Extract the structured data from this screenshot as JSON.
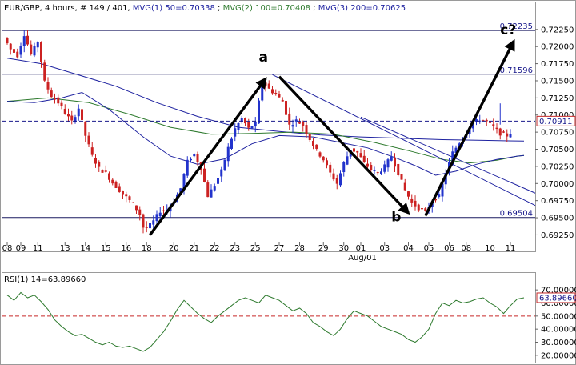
{
  "header": {
    "instrument": "EUR/GBP",
    "info": ", 4 hours, # 149 / 401, ",
    "mvg1_label": "MVG(1) 50=0.70338",
    "mvg2_label": "MVG(2) 100=0.70408",
    "mvg3_label": "MVG(3) 200=0.70625"
  },
  "colors": {
    "bull": "#2233cc",
    "bear": "#cc2222",
    "mvg1": "#1e22a0",
    "mvg2": "#2e7a2e",
    "mvg3": "#1e22a0",
    "rsi": "#2e7a2e",
    "current": "#1a1a8c",
    "rsi_level": "#c62828"
  },
  "chart_data": [
    {
      "type": "candlestick",
      "title": "",
      "y_ticks": [
        "0.72250",
        "0.72000",
        "0.71750",
        "0.71500",
        "0.71250",
        "0.71000",
        "0.70750",
        "0.70500",
        "0.70250",
        "0.70000",
        "0.69750",
        "0.69500",
        "0.69250"
      ],
      "ylim": [
        0.6915,
        0.7247
      ],
      "x_ticks": [
        {
          "label": "08",
          "i": 0
        },
        {
          "label": "09",
          "i": 4
        },
        {
          "label": "11",
          "i": 9
        },
        {
          "label": "13",
          "i": 17
        },
        {
          "label": "14",
          "i": 23
        },
        {
          "label": "15",
          "i": 29
        },
        {
          "label": "16",
          "i": 35
        },
        {
          "label": "18",
          "i": 41
        },
        {
          "label": "20",
          "i": 49
        },
        {
          "label": "21",
          "i": 55
        },
        {
          "label": "22",
          "i": 61
        },
        {
          "label": "23",
          "i": 67
        },
        {
          "label": "25",
          "i": 73
        },
        {
          "label": "27",
          "i": 80
        },
        {
          "label": "28",
          "i": 86
        },
        {
          "label": "29",
          "i": 93
        },
        {
          "label": "30",
          "i": 99
        },
        {
          "label": "01",
          "i": 104
        },
        {
          "label": "03",
          "i": 111
        },
        {
          "label": "04",
          "i": 118
        },
        {
          "label": "05",
          "i": 124
        },
        {
          "label": "06",
          "i": 130
        },
        {
          "label": "08",
          "i": 135
        },
        {
          "label": "10",
          "i": 142
        },
        {
          "label": "11",
          "i": 148
        }
      ],
      "x_sublabel": {
        "label": "Aug/01",
        "i": 104
      },
      "candle_count": 149,
      "anchors": [
        [
          0,
          0.7213
        ],
        [
          2,
          0.7196
        ],
        [
          4,
          0.7187
        ],
        [
          6,
          0.7218
        ],
        [
          8,
          0.7189
        ],
        [
          10,
          0.7208
        ],
        [
          12,
          0.7148
        ],
        [
          14,
          0.7128
        ],
        [
          16,
          0.7118
        ],
        [
          18,
          0.7103
        ],
        [
          20,
          0.709
        ],
        [
          22,
          0.711
        ],
        [
          24,
          0.707
        ],
        [
          26,
          0.704
        ],
        [
          28,
          0.7022
        ],
        [
          30,
          0.7015
        ],
        [
          32,
          0.7001
        ],
        [
          34,
          0.699
        ],
        [
          36,
          0.698
        ],
        [
          38,
          0.697
        ],
        [
          40,
          0.6955
        ],
        [
          41,
          0.6936
        ],
        [
          42,
          0.6935
        ],
        [
          44,
          0.6945
        ],
        [
          46,
          0.696
        ],
        [
          48,
          0.6962
        ],
        [
          50,
          0.6975
        ],
        [
          52,
          0.6993
        ],
        [
          54,
          0.7032
        ],
        [
          56,
          0.7043
        ],
        [
          58,
          0.7022
        ],
        [
          60,
          0.6982
        ],
        [
          62,
          0.6998
        ],
        [
          64,
          0.7018
        ],
        [
          66,
          0.7052
        ],
        [
          68,
          0.708
        ],
        [
          70,
          0.7095
        ],
        [
          72,
          0.708
        ],
        [
          74,
          0.7088
        ],
        [
          76,
          0.715
        ],
        [
          78,
          0.7138
        ],
        [
          80,
          0.713
        ],
        [
          82,
          0.712
        ],
        [
          84,
          0.7085
        ],
        [
          86,
          0.7092
        ],
        [
          88,
          0.7085
        ],
        [
          90,
          0.7065
        ],
        [
          92,
          0.7048
        ],
        [
          94,
          0.7035
        ],
        [
          96,
          0.7015
        ],
        [
          98,
          0.7
        ],
        [
          100,
          0.703
        ],
        [
          102,
          0.705
        ],
        [
          104,
          0.7045
        ],
        [
          106,
          0.703
        ],
        [
          108,
          0.702
        ],
        [
          110,
          0.7015
        ],
        [
          112,
          0.7025
        ],
        [
          114,
          0.704
        ],
        [
          116,
          0.7015
        ],
        [
          118,
          0.699
        ],
        [
          120,
          0.6972
        ],
        [
          122,
          0.6964
        ],
        [
          124,
          0.6958
        ],
        [
          126,
          0.6975
        ],
        [
          128,
          0.6982
        ],
        [
          130,
          0.7015
        ],
        [
          132,
          0.7045
        ],
        [
          134,
          0.706
        ],
        [
          136,
          0.7075
        ],
        [
          138,
          0.7088
        ],
        [
          140,
          0.7094
        ],
        [
          142,
          0.709
        ],
        [
          144,
          0.7082
        ],
        [
          146,
          0.7073
        ],
        [
          148,
          0.707
        ],
        [
          150,
          0.7078
        ],
        [
          152,
          0.709
        ]
      ],
      "mvg50": [
        [
          0,
          0.712
        ],
        [
          8,
          0.7118
        ],
        [
          16,
          0.7125
        ],
        [
          22,
          0.7133
        ],
        [
          30,
          0.7108
        ],
        [
          40,
          0.7068
        ],
        [
          48,
          0.704
        ],
        [
          56,
          0.7028
        ],
        [
          64,
          0.7036
        ],
        [
          72,
          0.7058
        ],
        [
          80,
          0.707
        ],
        [
          90,
          0.7068
        ],
        [
          98,
          0.706
        ],
        [
          106,
          0.7052
        ],
        [
          114,
          0.7038
        ],
        [
          120,
          0.7026
        ],
        [
          126,
          0.7012
        ],
        [
          132,
          0.7018
        ],
        [
          138,
          0.7028
        ],
        [
          144,
          0.7035
        ],
        [
          150,
          0.704
        ],
        [
          152,
          0.7041
        ]
      ],
      "mvg100": [
        [
          0,
          0.712
        ],
        [
          12,
          0.7125
        ],
        [
          24,
          0.7118
        ],
        [
          36,
          0.7101
        ],
        [
          48,
          0.7082
        ],
        [
          60,
          0.7072
        ],
        [
          72,
          0.7073
        ],
        [
          84,
          0.7075
        ],
        [
          96,
          0.7072
        ],
        [
          108,
          0.706
        ],
        [
          118,
          0.7048
        ],
        [
          128,
          0.7035
        ],
        [
          136,
          0.703
        ],
        [
          144,
          0.7034
        ],
        [
          150,
          0.704
        ],
        [
          152,
          0.7041
        ]
      ],
      "mvg200": [
        [
          0,
          0.7183
        ],
        [
          10,
          0.7175
        ],
        [
          20,
          0.716
        ],
        [
          32,
          0.7142
        ],
        [
          44,
          0.7118
        ],
        [
          56,
          0.7098
        ],
        [
          68,
          0.7082
        ],
        [
          80,
          0.7076
        ],
        [
          92,
          0.7071
        ],
        [
          104,
          0.7068
        ],
        [
          116,
          0.7066
        ],
        [
          128,
          0.7064
        ],
        [
          140,
          0.7063
        ],
        [
          152,
          0.7062
        ]
      ],
      "trendlines": [
        {
          "from": [
            78,
            0.7159
          ],
          "to": [
            158,
            0.6968
          ]
        },
        {
          "from": [
            104,
            0.7097
          ],
          "to": [
            158,
            0.6986
          ]
        }
      ],
      "hlines": [
        {
          "y": 0.72235,
          "label": "0.72235"
        },
        {
          "y": 0.71596,
          "label": "0.71596"
        },
        {
          "y": 0.69504,
          "label": "0.69504"
        }
      ],
      "current_price": {
        "y": 0.70911,
        "label": "0.70911"
      },
      "arrows": [
        {
          "from": [
            42,
            0.6925
          ],
          "to": [
            76,
            0.7153
          ]
        },
        {
          "from": [
            80,
            0.7156
          ],
          "to": [
            118,
            0.6957
          ]
        },
        {
          "from": [
            123,
            0.6953
          ],
          "to": [
            149,
            0.7208
          ]
        }
      ],
      "annotations": [
        {
          "text": "a",
          "at": [
            74,
            0.7178
          ]
        },
        {
          "text": "b",
          "at": [
            113,
            0.6945
          ]
        },
        {
          "text": "c?",
          "at": [
            145,
            0.7218
          ]
        }
      ]
    },
    {
      "type": "line",
      "title": "RSI(1) 14=63.89660",
      "y_ticks": [
        "70.00000",
        "60.00000",
        "50.00000",
        "40.00000",
        "30.00000",
        "20.00000"
      ],
      "ylim": [
        15,
        75
      ],
      "level_line": 50,
      "current_label": "63.89660",
      "series": [
        {
          "values": [
            [
              0,
              66
            ],
            [
              2,
              62
            ],
            [
              4,
              68
            ],
            [
              6,
              64
            ],
            [
              8,
              66
            ],
            [
              10,
              61
            ],
            [
              12,
              55
            ],
            [
              14,
              47
            ],
            [
              16,
              42
            ],
            [
              18,
              38
            ],
            [
              20,
              35
            ],
            [
              22,
              36
            ],
            [
              24,
              33
            ],
            [
              26,
              30
            ],
            [
              28,
              28
            ],
            [
              30,
              30
            ],
            [
              32,
              27
            ],
            [
              34,
              26
            ],
            [
              36,
              27
            ],
            [
              38,
              25
            ],
            [
              40,
              23
            ],
            [
              42,
              26
            ],
            [
              44,
              32
            ],
            [
              46,
              38
            ],
            [
              48,
              46
            ],
            [
              50,
              55
            ],
            [
              52,
              62
            ],
            [
              54,
              57
            ],
            [
              56,
              52
            ],
            [
              58,
              48
            ],
            [
              60,
              45
            ],
            [
              62,
              50
            ],
            [
              64,
              54
            ],
            [
              66,
              58
            ],
            [
              68,
              62
            ],
            [
              70,
              64
            ],
            [
              72,
              62
            ],
            [
              74,
              60
            ],
            [
              76,
              66
            ],
            [
              78,
              64
            ],
            [
              80,
              62
            ],
            [
              82,
              58
            ],
            [
              84,
              54
            ],
            [
              86,
              56
            ],
            [
              88,
              52
            ],
            [
              90,
              45
            ],
            [
              92,
              42
            ],
            [
              94,
              38
            ],
            [
              96,
              35
            ],
            [
              98,
              40
            ],
            [
              100,
              48
            ],
            [
              102,
              54
            ],
            [
              104,
              52
            ],
            [
              106,
              50
            ],
            [
              108,
              46
            ],
            [
              110,
              42
            ],
            [
              112,
              40
            ],
            [
              114,
              38
            ],
            [
              116,
              36
            ],
            [
              118,
              32
            ],
            [
              120,
              30
            ],
            [
              122,
              34
            ],
            [
              124,
              40
            ],
            [
              126,
              52
            ],
            [
              128,
              60
            ],
            [
              130,
              58
            ],
            [
              132,
              62
            ],
            [
              134,
              60
            ],
            [
              136,
              61
            ],
            [
              138,
              63
            ],
            [
              140,
              64
            ],
            [
              142,
              60
            ],
            [
              144,
              57
            ],
            [
              146,
              52
            ],
            [
              148,
              58
            ],
            [
              150,
              63
            ],
            [
              152,
              64
            ]
          ]
        }
      ]
    }
  ]
}
